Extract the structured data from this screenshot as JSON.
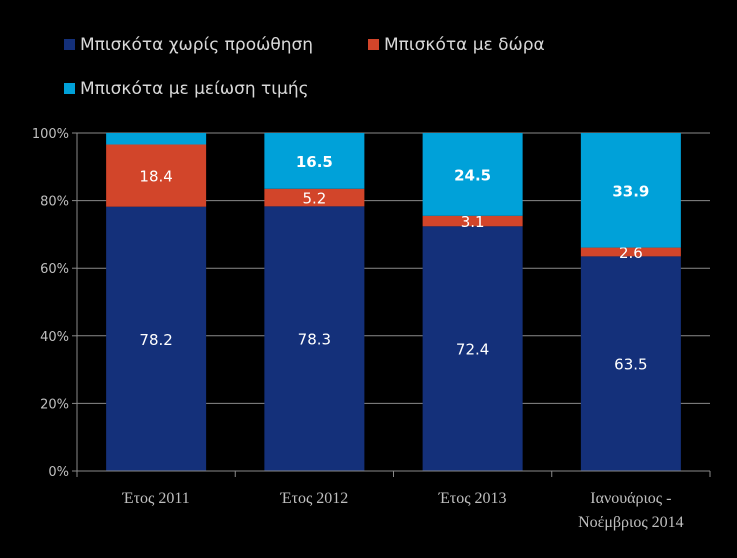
{
  "chart_data": {
    "type": "bar",
    "stacked": true,
    "normalized": true,
    "categories": [
      "Έτος 2011",
      "Έτος 2012",
      "Έτος 2013",
      "Ιανουάριος -\nΝοέμβριος 2014"
    ],
    "series": [
      {
        "name": "Μπισκότα χωρίς προώθηση",
        "color": "#14307a",
        "values": [
          78.2,
          78.3,
          72.4,
          63.5
        ],
        "labels": [
          "78.2",
          "78.3",
          "72.4",
          "63.5"
        ],
        "label_bold": false
      },
      {
        "name": "Μπισκότα με δώρα",
        "color": "#d2452a",
        "values": [
          18.4,
          5.2,
          3.1,
          2.6
        ],
        "labels": [
          "18.4",
          "5.2",
          "3.1",
          "2.6"
        ],
        "label_bold": false
      },
      {
        "name": "Μπισκότα με μείωση τιμής",
        "color": "#00a1d9",
        "values": [
          3.4,
          16.5,
          24.5,
          33.9
        ],
        "labels": [
          "",
          "16.5",
          "24.5",
          "33.9"
        ],
        "label_bold": true
      }
    ],
    "yticks": [
      "0%",
      "20%",
      "40%",
      "60%",
      "80%",
      "100%"
    ],
    "ylim": [
      0,
      100
    ],
    "grid": true,
    "legend_position": "top"
  }
}
